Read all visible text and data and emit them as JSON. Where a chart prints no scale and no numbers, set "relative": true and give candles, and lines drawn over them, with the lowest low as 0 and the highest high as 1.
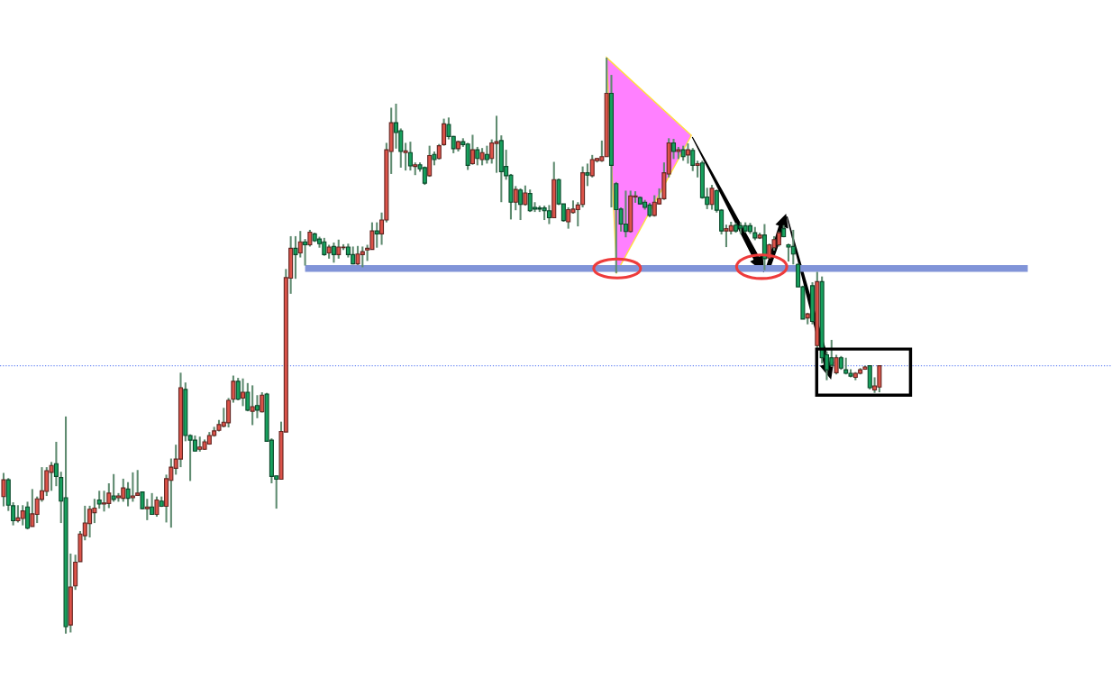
{
  "chart_data": {
    "type": "candlestick",
    "relative": true,
    "categories": [
      null,
      null,
      null,
      null,
      null,
      null,
      null,
      null,
      null,
      null,
      null,
      null,
      null,
      null,
      null,
      null,
      null,
      null,
      null,
      null,
      null,
      null,
      null,
      null,
      null,
      null,
      null,
      null,
      null,
      null,
      null,
      null,
      null,
      null,
      null,
      null,
      null,
      null,
      null,
      null,
      null,
      null,
      null,
      null,
      null,
      null,
      null,
      null,
      null,
      null,
      null,
      null,
      null,
      null,
      null,
      null,
      null,
      null,
      null,
      null,
      null,
      null,
      null,
      null,
      null,
      null,
      null,
      null,
      null,
      null,
      null,
      null,
      null,
      null,
      null,
      null,
      null,
      null,
      null,
      null,
      null,
      null,
      null,
      null,
      null,
      null,
      null,
      null,
      null,
      null,
      null,
      null,
      null,
      null,
      null,
      null,
      null,
      null,
      null,
      null,
      null,
      null,
      null,
      null,
      null,
      null,
      null,
      null,
      null,
      null,
      null,
      null,
      null,
      null,
      null,
      null,
      null,
      null,
      null,
      null,
      null,
      null,
      null,
      null,
      null,
      null,
      null,
      null,
      null,
      null,
      null,
      null,
      null,
      null,
      null,
      null,
      null,
      null,
      null,
      null,
      null,
      null,
      null,
      null,
      null,
      null,
      null,
      null,
      null,
      null,
      null,
      null,
      null,
      null,
      null,
      null,
      null,
      null,
      null,
      null,
      null,
      null,
      null,
      null,
      null,
      null,
      null,
      null,
      null,
      null,
      null,
      null,
      null,
      null,
      null,
      null,
      null,
      null,
      null,
      null,
      null,
      null,
      null,
      null,
      null,
      null,
      null,
      null,
      null,
      null,
      null,
      null,
      null,
      null,
      null,
      null,
      null,
      null,
      null,
      null,
      null,
      null,
      null,
      null,
      null,
      null,
      null,
      null,
      null,
      null,
      null,
      null,
      null,
      null,
      null,
      null,
      null,
      null,
      null,
      null,
      null,
      null,
      null,
      null,
      null,
      null,
      null,
      null,
      null,
      null,
      null,
      null
    ],
    "ohlc": [
      [
        0.238,
        0.279,
        0.221,
        0.267
      ],
      [
        0.267,
        0.27,
        0.213,
        0.223
      ],
      [
        0.222,
        0.228,
        0.188,
        0.196
      ],
      [
        0.196,
        0.223,
        0.193,
        0.201
      ],
      [
        0.2,
        0.223,
        0.188,
        0.213
      ],
      [
        0.22,
        0.229,
        0.181,
        0.183
      ],
      [
        0.186,
        0.251,
        0.186,
        0.208
      ],
      [
        0.207,
        0.238,
        0.192,
        0.234
      ],
      [
        0.233,
        0.289,
        0.229,
        0.248
      ],
      [
        0.247,
        0.289,
        0.239,
        0.283
      ],
      [
        0.28,
        0.298,
        0.248,
        0.292
      ],
      [
        0.295,
        0.333,
        0.256,
        0.273
      ],
      [
        0.271,
        0.281,
        0.192,
        0.23
      ],
      [
        0.236,
        0.377,
        0,
        0.012
      ],
      [
        0.015,
        0.139,
        0.002,
        0.081
      ],
      [
        0.083,
        0.137,
        0.076,
        0.124
      ],
      [
        0.125,
        0.178,
        0.125,
        0.173
      ],
      [
        0.17,
        0.222,
        0.162,
        0.192
      ],
      [
        0.191,
        0.222,
        0.167,
        0.216
      ],
      [
        0.21,
        0.234,
        0.192,
        0.218
      ],
      [
        0.232,
        0.248,
        0.217,
        0.225
      ],
      [
        0.225,
        0.248,
        0.212,
        0.227
      ],
      [
        0.226,
        0.261,
        0.218,
        0.244
      ],
      [
        0.239,
        0.277,
        0.229,
        0.233
      ],
      [
        0.236,
        0.244,
        0.229,
        0.239
      ],
      [
        0.235,
        0.269,
        0.229,
        0.253
      ],
      [
        0.251,
        0.263,
        0.221,
        0.235
      ],
      [
        0.236,
        0.28,
        0.229,
        0.239
      ],
      [
        0.24,
        0.284,
        0.239,
        0.244
      ],
      [
        0.246,
        0.246,
        0.216,
        0.217
      ],
      [
        0.217,
        0.234,
        0.197,
        0.22
      ],
      [
        0.22,
        0.244,
        0.207,
        0.207
      ],
      [
        0.207,
        0.238,
        0.203,
        0.232
      ],
      [
        0.23,
        0.238,
        0.22,
        0.221
      ],
      [
        0.221,
        0.276,
        0.193,
        0.269
      ],
      [
        0.266,
        0.304,
        0.184,
        0.289
      ],
      [
        0.287,
        0.328,
        0.276,
        0.303
      ],
      [
        0.303,
        0.453,
        0.289,
        0.427
      ],
      [
        0.424,
        0.436,
        0.334,
        0.344
      ],
      [
        0.344,
        0.346,
        0.265,
        0.336
      ],
      [
        0.336,
        0.344,
        0.316,
        0.317
      ],
      [
        0.32,
        0.342,
        0.316,
        0.324
      ],
      [
        0.32,
        0.337,
        0.319,
        0.333
      ],
      [
        0.329,
        0.35,
        0.328,
        0.344
      ],
      [
        0.344,
        0.359,
        0.342,
        0.352
      ],
      [
        0.353,
        0.371,
        0.351,
        0.363
      ],
      [
        0.36,
        0.392,
        0.358,
        0.367
      ],
      [
        0.366,
        0.409,
        0.358,
        0.405
      ],
      [
        0.407,
        0.448,
        0.401,
        0.438
      ],
      [
        0.438,
        0.444,
        0.405,
        0.407
      ],
      [
        0.409,
        0.443,
        0.395,
        0.419
      ],
      [
        0.419,
        0.435,
        0.386,
        0.388
      ],
      [
        0.386,
        0.431,
        0.362,
        0.394
      ],
      [
        0.396,
        0.414,
        0.374,
        0.388
      ],
      [
        0.385,
        0.419,
        0.384,
        0.414
      ],
      [
        0.416,
        0.418,
        0.333,
        0.334
      ],
      [
        0.336,
        0.339,
        0.261,
        0.273
      ],
      [
        0.274,
        0.274,
        0.217,
        0.268
      ],
      [
        0.268,
        0.368,
        0.268,
        0.351
      ],
      [
        0.35,
        0.633,
        0.35,
        0.618
      ],
      [
        0.617,
        0.69,
        0.59,
        0.669
      ],
      [
        0.669,
        0.69,
        0.616,
        0.658
      ],
      [
        0.661,
        0.699,
        0.653,
        0.68
      ],
      [
        0.68,
        0.685,
        0.639,
        0.675
      ],
      [
        0.675,
        0.701,
        0.672,
        0.697
      ],
      [
        0.694,
        0.696,
        0.68,
        0.682
      ],
      [
        0.685,
        0.689,
        0.67,
        0.677
      ],
      [
        0.68,
        0.687,
        0.656,
        0.658
      ],
      [
        0.661,
        0.675,
        0.651,
        0.671
      ],
      [
        0.672,
        0.679,
        0.644,
        0.658
      ],
      [
        0.658,
        0.684,
        0.651,
        0.671
      ],
      [
        0.67,
        0.676,
        0.666,
        0.671
      ],
      [
        0.671,
        0.677,
        0.653,
        0.658
      ],
      [
        0.658,
        0.672,
        0.641,
        0.642
      ],
      [
        0.642,
        0.673,
        0.64,
        0.659
      ],
      [
        0.658,
        0.672,
        0.636,
        0.663
      ],
      [
        0.666,
        0.675,
        0.647,
        0.669
      ],
      [
        0.667,
        0.714,
        0.667,
        0.699
      ],
      [
        0.699,
        0.714,
        0.67,
        0.694
      ],
      [
        0.694,
        0.731,
        0.675,
        0.718
      ],
      [
        0.718,
        0.852,
        0.714,
        0.84
      ],
      [
        0.837,
        0.913,
        0.798,
        0.887
      ],
      [
        0.887,
        0.92,
        0.842,
        0.87
      ],
      [
        0.873,
        0.877,
        0.809,
        0.837
      ],
      [
        0.835,
        0.852,
        0.804,
        0.838
      ],
      [
        0.835,
        0.854,
        0.804,
        0.812
      ],
      [
        0.811,
        0.818,
        0.796,
        0.814
      ],
      [
        0.814,
        0.818,
        0.802,
        0.807
      ],
      [
        0.809,
        0.811,
        0.779,
        0.782
      ],
      [
        0.795,
        0.847,
        0.793,
        0.83
      ],
      [
        0.832,
        0.837,
        0.813,
        0.823
      ],
      [
        0.825,
        0.85,
        0.823,
        0.847
      ],
      [
        0.849,
        0.894,
        0.847,
        0.885
      ],
      [
        0.884,
        0.896,
        0.858,
        0.863
      ],
      [
        0.863,
        0.864,
        0.834,
        0.842
      ],
      [
        0.842,
        0.856,
        0.837,
        0.854
      ],
      [
        0.854,
        0.86,
        0.845,
        0.849
      ],
      [
        0.85,
        0.852,
        0.805,
        0.813
      ],
      [
        0.816,
        0.866,
        0.814,
        0.84
      ],
      [
        0.84,
        0.845,
        0.813,
        0.825
      ],
      [
        0.823,
        0.843,
        0.813,
        0.835
      ],
      [
        0.832,
        0.847,
        0.816,
        0.823
      ],
      [
        0.825,
        0.858,
        0.816,
        0.852
      ],
      [
        0.851,
        0.899,
        0.8,
        0.854
      ],
      [
        0.856,
        0.865,
        0.749,
        0.802
      ],
      [
        0.811,
        0.84,
        0.788,
        0.795
      ],
      [
        0.796,
        0.798,
        0.719,
        0.749
      ],
      [
        0.749,
        0.777,
        0.735,
        0.771
      ],
      [
        0.77,
        0.773,
        0.718,
        0.745
      ],
      [
        0.745,
        0.778,
        0.743,
        0.765
      ],
      [
        0.764,
        0.771,
        0.732,
        0.734
      ],
      [
        0.74,
        0.749,
        0.732,
        0.737
      ],
      [
        0.739,
        0.743,
        0.732,
        0.737
      ],
      [
        0.739,
        0.743,
        0.718,
        0.734
      ],
      [
        0.734,
        0.744,
        0.711,
        0.722
      ],
      [
        0.722,
        0.819,
        0.722,
        0.788
      ],
      [
        0.788,
        0.79,
        0.744,
        0.746
      ],
      [
        0.746,
        0.746,
        0.715,
        0.717
      ],
      [
        0.715,
        0.74,
        0.703,
        0.736
      ],
      [
        0.731,
        0.752,
        0.729,
        0.737
      ],
      [
        0.736,
        0.749,
        0.707,
        0.744
      ],
      [
        0.745,
        0.811,
        0.74,
        0.8
      ],
      [
        0.8,
        0.816,
        0.777,
        0.796
      ],
      [
        0.795,
        0.831,
        0.792,
        0.823
      ],
      [
        0.821,
        0.826,
        0.818,
        0.825
      ],
      [
        0.821,
        0.856,
        0.819,
        0.828
      ],
      [
        0.828,
        1,
        0.828,
        0.938
      ],
      [
        0.938,
        0.97,
        0.74,
        0.813
      ],
      [
        0.781,
        0.784,
        0.626,
        0.736
      ],
      [
        0.737,
        0.74,
        0.698,
        0.711
      ],
      [
        0.711,
        0.769,
        0.688,
        0.698
      ],
      [
        0.698,
        0.769,
        0.696,
        0.76
      ],
      [
        0.758,
        0.768,
        0.748,
        0.76
      ],
      [
        0.757,
        0.759,
        0.745,
        0.746
      ],
      [
        0.749,
        0.753,
        0.736,
        0.74
      ],
      [
        0.744,
        0.748,
        0.723,
        0.726
      ],
      [
        0.726,
        0.761,
        0.724,
        0.749
      ],
      [
        0.746,
        0.773,
        0.745,
        0.755
      ],
      [
        0.755,
        0.818,
        0.753,
        0.8
      ],
      [
        0.798,
        0.86,
        0.792,
        0.852
      ],
      [
        0.852,
        0.859,
        0.824,
        0.837
      ],
      [
        0.837,
        0.845,
        0.824,
        0.84
      ],
      [
        0.84,
        0.847,
        0.821,
        0.828
      ],
      [
        0.831,
        0.851,
        0.816,
        0.84
      ],
      [
        0.839,
        0.843,
        0.803,
        0.813
      ],
      [
        0.813,
        0.821,
        0.792,
        0.816
      ],
      [
        0.817,
        0.821,
        0.755,
        0.757
      ],
      [
        0.758,
        0.774,
        0.737,
        0.745
      ],
      [
        0.745,
        0.779,
        0.736,
        0.773
      ],
      [
        0.769,
        0.771,
        0.731,
        0.735
      ],
      [
        0.735,
        0.737,
        0.693,
        0.699
      ],
      [
        0.699,
        0.71,
        0.671,
        0.703
      ],
      [
        0.699,
        0.715,
        0.693,
        0.708
      ],
      [
        0.709,
        0.713,
        0.696,
        0.699
      ],
      [
        0.708,
        0.714,
        0.694,
        0.704
      ],
      [
        0.708,
        0.714,
        0.696,
        0.699
      ],
      [
        0.708,
        0.713,
        0.694,
        0.698
      ],
      [
        0.696,
        0.706,
        0.683,
        0.687
      ],
      [
        0.687,
        0.696,
        0.685,
        0.692
      ],
      [
        0.692,
        0.711,
        0.631,
        0.651
      ],
      [
        0.652,
        0.677,
        0.651,
        0.675
      ],
      [
        0.67,
        0.69,
        0.665,
        0.684
      ],
      [
        0.675,
        0.698,
        0.672,
        0.696
      ],
      [
        0.703,
        0.709,
        0.688,
        0.689
      ],
      [
        0.675,
        0.677,
        0.646,
        0.671
      ],
      [
        0.672,
        0.701,
        0.641,
        0.659
      ],
      [
        0.641,
        0.643,
        0.602,
        0.602
      ],
      [
        0.602,
        0.604,
        0.546,
        0.546
      ],
      [
        0.548,
        0.557,
        0.537,
        0.555
      ],
      [
        0.604,
        0.61,
        0.537,
        0.542
      ],
      [
        0.5,
        0.628,
        0.495,
        0.611
      ],
      [
        0.611,
        0.62,
        0.469,
        0.479
      ],
      [
        0.484,
        0.49,
        0.44,
        0.458
      ],
      [
        0.479,
        0.51,
        0.463,
        0.466
      ],
      [
        0.453,
        0.484,
        0.45,
        0.479
      ],
      [
        0.479,
        0.482,
        0.458,
        0.461
      ],
      [
        0.458,
        0.479,
        0.45,
        0.452
      ],
      [
        0.452,
        0.459,
        0.445,
        0.447
      ],
      [
        0.445,
        0.454,
        0.44,
        0.452
      ],
      [
        0.452,
        0.461,
        0.45,
        0.458
      ],
      [
        0.459,
        0.465,
        0.458,
        0.463
      ],
      [
        0.465,
        0.466,
        0.424,
        0.427
      ],
      [
        0.423,
        0.445,
        0.418,
        0.43
      ],
      [
        0.428,
        0.465,
        0.419,
        0.465
      ],
      null,
      null,
      null,
      null,
      null,
      null,
      null,
      null,
      null,
      null,
      null,
      null,
      null,
      null,
      null,
      null,
      null,
      null,
      null,
      null,
      null,
      null,
      null,
      null,
      null,
      null,
      null,
      null,
      null,
      null,
      null,
      null,
      null,
      null,
      null,
      null,
      null,
      null,
      null,
      null,
      null,
      null,
      null,
      null,
      null,
      null,
      null,
      null
    ],
    "colors": [
      "#dc5349",
      "#17a05d",
      "#17a05d",
      "#dc5349",
      "#dc5349",
      "#17a05d",
      "#dc5349",
      "#dc5349",
      "#dc5349",
      "#dc5349",
      "#dc5349",
      "#17a05d",
      "#17a05d",
      "#17a05d",
      "#dc5349",
      "#dc5349",
      "#dc5349",
      "#dc5349",
      "#dc5349",
      "#dc5349",
      "#17a05d",
      "#dc5349",
      "#dc5349",
      "#17a05d",
      "#dc5349",
      "#dc5349",
      "#17a05d",
      "#dc5349",
      "#dc5349",
      "#17a05d",
      "#dc5349",
      "#17a05d",
      "#dc5349",
      "#17a05d",
      "#dc5349",
      "#dc5349",
      "#dc5349",
      "#dc5349",
      "#17a05d",
      "#17a05d",
      "#17a05d",
      "#dc5349",
      "#dc5349",
      "#dc5349",
      "#dc5349",
      "#dc5349",
      "#dc5349",
      "#dc5349",
      "#dc5349",
      "#17a05d",
      "#dc5349",
      "#17a05d",
      "#dc5349",
      "#17a05d",
      "#dc5349",
      "#17a05d",
      "#17a05d",
      "#17a05d",
      "#dc5349",
      "#dc5349",
      "#dc5349",
      "#17a05d",
      "#dc5349",
      "#17a05d",
      "#dc5349",
      "#17a05d",
      "#17a05d",
      "#17a05d",
      "#dc5349",
      "#17a05d",
      "#dc5349",
      "#dc5349",
      "#17a05d",
      "#17a05d",
      "#dc5349",
      "#dc5349",
      "#dc5349",
      "#dc5349",
      "#17a05d",
      "#dc5349",
      "#dc5349",
      "#dc5349",
      "#17a05d",
      "#17a05d",
      "#dc5349",
      "#17a05d",
      "#dc5349",
      "#17a05d",
      "#17a05d",
      "#dc5349",
      "#17a05d",
      "#dc5349",
      "#dc5349",
      "#17a05d",
      "#17a05d",
      "#dc5349",
      "#17a05d",
      "#17a05d",
      "#dc5349",
      "#17a05d",
      "#dc5349",
      "#17a05d",
      "#dc5349",
      "#dc5349",
      "#17a05d",
      "#17a05d",
      "#17a05d",
      "#dc5349",
      "#17a05d",
      "#dc5349",
      "#17a05d",
      "#17a05d",
      "#17a05d",
      "#17a05d",
      "#17a05d",
      "#dc5349",
      "#17a05d",
      "#17a05d",
      "#dc5349",
      "#dc5349",
      "#dc5349",
      "#dc5349",
      "#17a05d",
      "#dc5349",
      "#dc5349",
      "#dc5349",
      "#dc5349",
      "#17a05d",
      "#17a05d",
      "#17a05d",
      "#17a05d",
      "#dc5349",
      "#dc5349",
      "#17a05d",
      "#17a05d",
      "#17a05d",
      "#dc5349",
      "#dc5349",
      "#dc5349",
      "#dc5349",
      "#17a05d",
      "#dc5349",
      "#17a05d",
      "#dc5349",
      "#17a05d",
      "#dc5349",
      "#17a05d",
      "#17a05d",
      "#dc5349",
      "#17a05d",
      "#17a05d",
      "#dc5349",
      "#dc5349",
      "#17a05d",
      "#17a05d",
      "#17a05d",
      "#17a05d",
      "#17a05d",
      "#dc5349",
      "#17a05d",
      "#dc5349",
      "#dc5349",
      "#dc5349",
      "#17a05d",
      "#17a05d",
      "#17a05d",
      "#17a05d",
      "#17a05d",
      "#dc5349",
      "#17a05d",
      "#dc5349",
      "#17a05d",
      "#17a05d",
      "#17a05d",
      "#dc5349",
      "#17a05d",
      "#17a05d",
      "#17a05d",
      "#dc5349",
      "#dc5349",
      "#dc5349",
      "#17a05d",
      "#dc5349",
      "#dc5349",
      null,
      null,
      null,
      null,
      null,
      null,
      null,
      null,
      null,
      null,
      null,
      null,
      null,
      null,
      null,
      null,
      null,
      null,
      null,
      null,
      null,
      null,
      null,
      null,
      null,
      null,
      null,
      null,
      null,
      null,
      null,
      null,
      null,
      null,
      null,
      null,
      null,
      null,
      null,
      null,
      null,
      null,
      null,
      null,
      null,
      null,
      null,
      null
    ],
    "series": [
      {
        "type": "line",
        "color": "#8194d8",
        "values": [
          null,
          null,
          null,
          null,
          null,
          null,
          null,
          null,
          null,
          null,
          null,
          null,
          null,
          null,
          null,
          null,
          null,
          null,
          null,
          null,
          null,
          null,
          null,
          null,
          null,
          null,
          null,
          null,
          null,
          null,
          null,
          null,
          null,
          null,
          null,
          null,
          null,
          null,
          null,
          null,
          null,
          null,
          null,
          null,
          null,
          null,
          null,
          null,
          null,
          null,
          null,
          null,
          null,
          null,
          null,
          null,
          null,
          null,
          null,
          null,
          null,
          null,
          null,
          0.634,
          0.634,
          0.634,
          0.634,
          0.634,
          0.634,
          0.634,
          0.634,
          0.634,
          0.634,
          0.634,
          0.634,
          0.634,
          0.634,
          0.634,
          0.634,
          0.634,
          0.634,
          0.634,
          0.634,
          0.634,
          0.634,
          0.634,
          0.634,
          0.634,
          0.634,
          0.634,
          0.634,
          0.634,
          0.634,
          0.634,
          0.634,
          0.634,
          0.634,
          0.634,
          0.634,
          0.634,
          0.634,
          0.634,
          0.634,
          0.634,
          0.634,
          0.634,
          0.634,
          0.634,
          0.634,
          0.634,
          0.634,
          0.634,
          0.634,
          0.634,
          0.634,
          0.634,
          0.634,
          0.634,
          0.634,
          0.634,
          0.634,
          0.634,
          0.634,
          0.634,
          0.634,
          0.634,
          0.634,
          0.634,
          0.634,
          0.634,
          0.634,
          0.634,
          0.634,
          0.634,
          0.634,
          0.634,
          0.634,
          0.634,
          0.634,
          0.634,
          0.634,
          0.634,
          0.634,
          0.634,
          0.634,
          0.634,
          0.634,
          0.634,
          0.634,
          0.634,
          0.634,
          0.634,
          0.634,
          0.634,
          0.634,
          0.634,
          0.634,
          0.634,
          0.634,
          0.634,
          0.634,
          0.634,
          0.634,
          0.634,
          0.634,
          0.634,
          0.634,
          0.634,
          0.634,
          0.634,
          0.634,
          0.634,
          0.634,
          0.634,
          0.634,
          0.634,
          0.634,
          0.634,
          0.634,
          0.634,
          0.634,
          0.634,
          0.634,
          0.634,
          0.634,
          0.634,
          0.634,
          0.634,
          0.634,
          0.634,
          0.634,
          0.634,
          0.634,
          0.634,
          0.634,
          0.634,
          0.634,
          0.634,
          0.634,
          0.634,
          0.634,
          0.634,
          0.634,
          0.634,
          0.634,
          0.634,
          0.634,
          0.634,
          0.634,
          0.634,
          0.634,
          0.634,
          0.634,
          0.634,
          0.634,
          null,
          null,
          null,
          null,
          null,
          null,
          null,
          null,
          null,
          null,
          null,
          null,
          null,
          null,
          null,
          null,
          null
        ]
      }
    ],
    "ref_lines": [
      {
        "axis": "y",
        "value": 0.465,
        "color": "#6f8cf5",
        "line_style": "dotted"
      }
    ]
  }
}
